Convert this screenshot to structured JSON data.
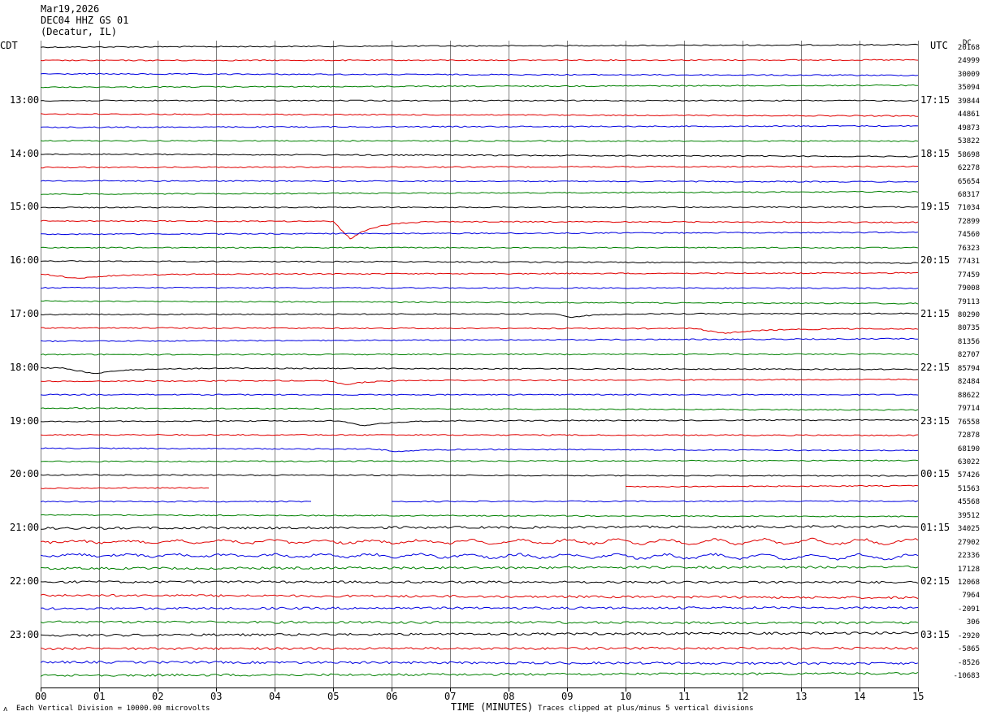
{
  "header": {
    "date": "Mar19,2026",
    "station": "DEC04 HHZ GS 01",
    "location": "(Decatur, IL)"
  },
  "left_axis_title": "CDT",
  "right_axis_title": "UTC",
  "dc_title": "DC",
  "footer": {
    "note": "Each Vertical Division = 10000.00 microvolts",
    "xlabel": "TIME (MINUTES)",
    "clip_note": "Traces clipped at plus/minus 5 vertical divisions"
  },
  "chart_data": {
    "type": "line",
    "title": "DEC04 HHZ GS 01",
    "xlabel": "TIME (MINUTES)",
    "ylabel": "CDT",
    "x_ticks": [
      "00",
      "01",
      "02",
      "03",
      "04",
      "05",
      "06",
      "07",
      "08",
      "09",
      "10",
      "11",
      "12",
      "13",
      "14",
      "15"
    ],
    "xlim": [
      0,
      15
    ],
    "grid": true,
    "trace_colors": [
      "#000000",
      "#e00000",
      "#0000e0",
      "#008000"
    ],
    "cdt_hour_labels": [
      "13:00",
      "14:00",
      "15:00",
      "16:00",
      "17:00",
      "18:00",
      "19:00",
      "20:00",
      "21:00",
      "22:00",
      "23:00"
    ],
    "utc_hour_labels": [
      "17:15",
      "18:15",
      "19:15",
      "20:15",
      "21:15",
      "22:15",
      "23:15",
      "00:15",
      "01:15",
      "02:15",
      "03:15"
    ],
    "dc_offsets": [
      "20168",
      "24999",
      "30009",
      "35094",
      "39844",
      "44861",
      "49873",
      "53822",
      "58698",
      "62278",
      "65654",
      "68317",
      "71034",
      "72899",
      "74560",
      "76323",
      "77431",
      "77459",
      "79008",
      "79113",
      "80290",
      "80735",
      "81356",
      "82707",
      "85794",
      "82484",
      "88622",
      "79714",
      "76558",
      "72878",
      "68190",
      "63022",
      "57426",
      "51563",
      "45568",
      "39512",
      "34025",
      "27902",
      "22336",
      "17128",
      "12068",
      "7964",
      "-2091",
      "306",
      "-2920",
      "-5865",
      "-8526",
      "-10683"
    ]
  }
}
